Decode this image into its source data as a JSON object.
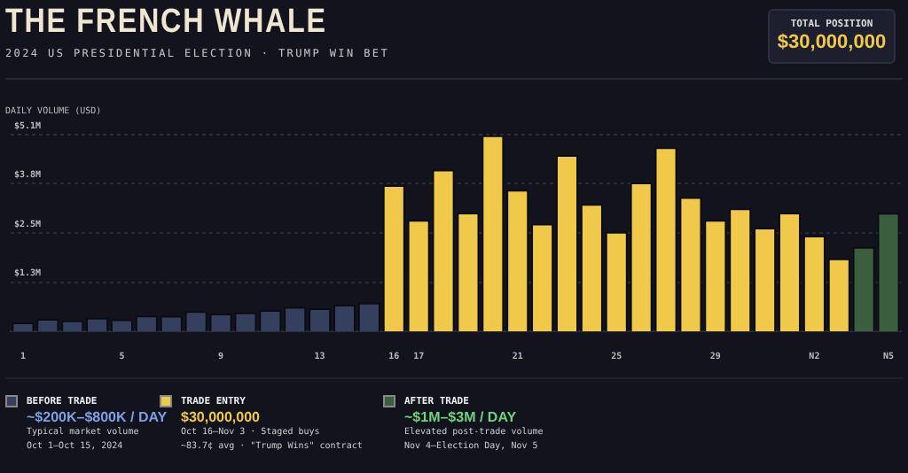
{
  "chart_data": {
    "type": "bar",
    "title": "THE FRENCH WHALE",
    "subtitle": "2024 US PRESIDENTIAL ELECTION · TRUMP WIN BET",
    "ylabel": "DAILY VOLUME (USD)",
    "categories": [
      "1",
      null,
      null,
      null,
      "5",
      null,
      null,
      null,
      "9",
      null,
      null,
      null,
      "13",
      null,
      null,
      "16",
      "17",
      null,
      null,
      null,
      "21",
      null,
      null,
      null,
      "25",
      null,
      null,
      null,
      "29",
      null,
      null,
      null,
      "N2",
      null,
      null,
      "N5"
    ],
    "values": [
      0.23,
      0.32,
      0.28,
      0.35,
      0.31,
      0.41,
      0.4,
      0.52,
      0.46,
      0.49,
      0.55,
      0.63,
      0.6,
      0.69,
      0.74,
      3.79,
      2.89,
      4.19,
      3.08,
      5.08,
      3.67,
      2.79,
      4.57,
      3.3,
      2.58,
      3.86,
      4.77,
      3.48,
      2.89,
      3.19,
      2.69,
      3.08,
      2.48,
      1.89,
      2.19,
      3.07
    ],
    "colors": [
      "#34405e",
      "#34405e",
      "#34405e",
      "#34405e",
      "#34405e",
      "#34405e",
      "#34405e",
      "#34405e",
      "#34405e",
      "#34405e",
      "#34405e",
      "#34405e",
      "#34405e",
      "#34405e",
      "#34405e",
      "#f0c84a",
      "#f0c84a",
      "#f0c84a",
      "#f0c84a",
      "#f0c84a",
      "#f0c84a",
      "#f0c84a",
      "#f0c84a",
      "#f0c84a",
      "#f0c84a",
      "#f0c84a",
      "#f0c84a",
      "#f0c84a",
      "#f0c84a",
      "#f0c84a",
      "#f0c84a",
      "#f0c84a",
      "#f0c84a",
      "#f0c84a",
      "#3a5e3e",
      "#3a5e3e"
    ],
    "ylim": [
      0,
      5.1
    ],
    "yticks": [
      {
        "value": 1.275,
        "label": "$1.3M"
      },
      {
        "value": 2.55,
        "label": "$2.5M"
      },
      {
        "value": 3.825,
        "label": "$3.8M"
      },
      {
        "value": 5.1,
        "label": "$5.1M"
      }
    ],
    "grid": "y",
    "legend": false,
    "annotations": [
      "TOTAL POSITION",
      "$30,000,000",
      "BEFORE TRADE",
      "~$200K–$800K / DAY",
      "Typical market volume",
      "Oct 1–Oct 15, 2024",
      "TRADE ENTRY",
      "$30,000,000",
      "Oct 16–Nov 3 · Staged buys",
      "~83.7¢ avg · \"Trump Wins\" contract",
      "AFTER TRADE",
      "~$1M–$3M / DAY",
      "Elevated post-trade volume",
      "Nov 4–Election Day, Nov 5"
    ]
  }
}
